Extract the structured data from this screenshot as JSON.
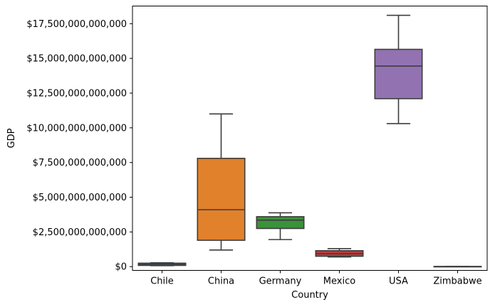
{
  "chart_data": {
    "type": "box",
    "xlabel": "Country",
    "ylabel": "GDP",
    "ylim": [
      -270000000000,
      18770000000000
    ],
    "yticks": [
      0,
      2500000000000,
      5000000000000,
      7500000000000,
      10000000000000,
      12500000000000,
      15000000000000,
      17500000000000
    ],
    "ytick_labels": [
      "$0",
      "$2,500,000,000,000",
      "$5,000,000,000,000",
      "$7,500,000,000,000",
      "$10,000,000,000,000",
      "$12,500,000,000,000",
      "$15,000,000,000,000",
      "$17,500,000,000,000"
    ],
    "categories": [
      "Chile",
      "China",
      "Germany",
      "Mexico",
      "USA",
      "Zimbabwe"
    ],
    "boxes": [
      {
        "category": "Chile",
        "color": "#3274a1",
        "min": 70000000000,
        "q1": 90000000000,
        "median": 170000000000,
        "q3": 250000000000,
        "max": 280000000000
      },
      {
        "category": "China",
        "color": "#e1812c",
        "min": 1200000000000,
        "q1": 1900000000000,
        "median": 4100000000000,
        "q3": 7800000000000,
        "max": 11000000000000
      },
      {
        "category": "Germany",
        "color": "#3a923a",
        "min": 1950000000000,
        "q1": 2750000000000,
        "median": 3350000000000,
        "q3": 3600000000000,
        "max": 3880000000000
      },
      {
        "category": "Mexico",
        "color": "#c03d3e",
        "min": 700000000000,
        "q1": 750000000000,
        "median": 930000000000,
        "q3": 1150000000000,
        "max": 1300000000000
      },
      {
        "category": "USA",
        "color": "#9372b2",
        "min": 10300000000000,
        "q1": 12100000000000,
        "median": 14450000000000,
        "q3": 15650000000000,
        "max": 18100000000000
      },
      {
        "category": "Zimbabwe",
        "color": "#845b53",
        "min": 5000000000,
        "q1": 6000000000,
        "median": 8000000000,
        "q3": 10000000000,
        "max": 14000000000
      }
    ]
  }
}
